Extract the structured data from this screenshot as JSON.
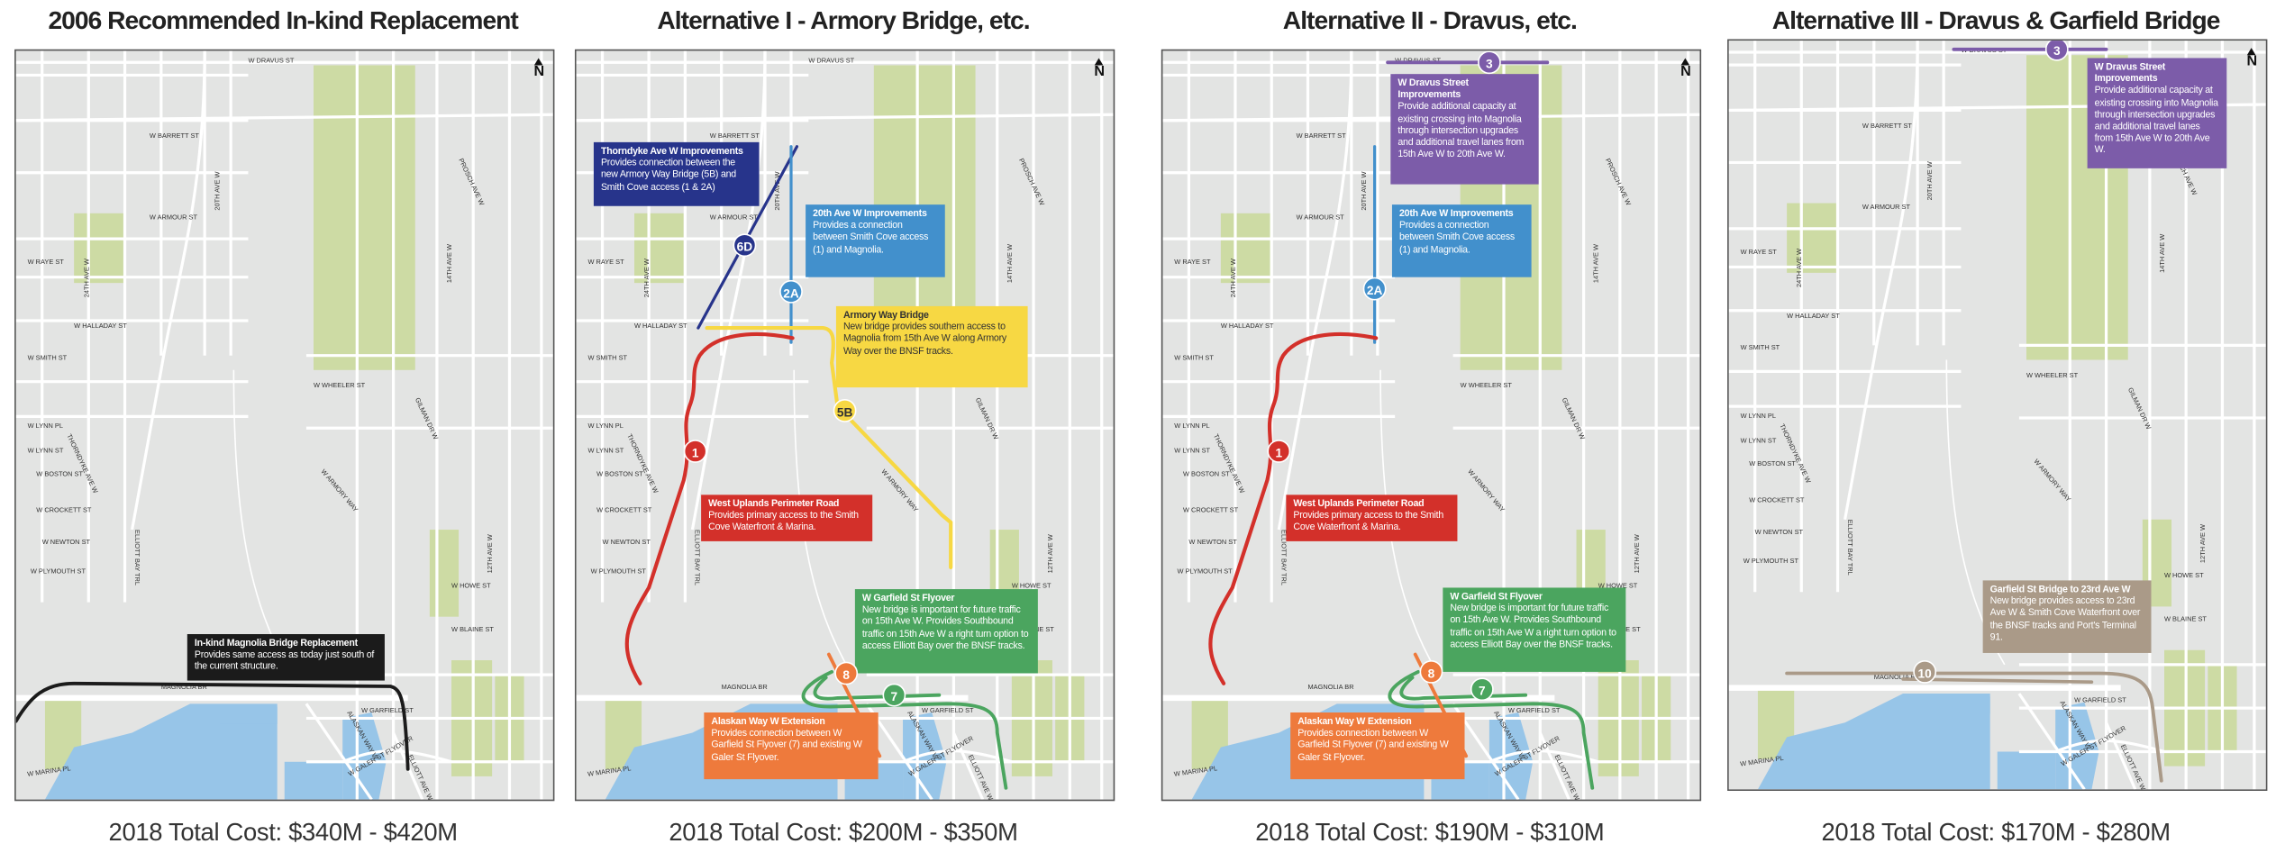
{
  "north_label": "N",
  "street_labels": [
    "W DRAVUS ST",
    "W BARRETT ST",
    "W ARMOUR ST",
    "W RAYE ST",
    "W HALLADAY ST",
    "W SMITH ST",
    "W LYNN PL",
    "W LYNN ST",
    "W BOSTON ST",
    "W CROCKETT ST",
    "W NEWTON ST",
    "W PLYMOUTH ST",
    "W WHEELER ST",
    "W HOWE ST",
    "W BLAINE ST",
    "MAGNOLIA BR",
    "W GARFIELD ST",
    "W MARINA PL",
    "ALASKAN WAY W",
    "W GALER ST FLYOVER",
    "ELLIOTT AVE W",
    "ELLIOTT BAY TRL",
    "20TH AVE W",
    "24TH AVE W",
    "14TH AVE W",
    "12TH AVE W",
    "GILMAN DR W",
    "THORNDYKE AVE W",
    "W ARMORY WAY",
    "PROSCH AVE W"
  ],
  "colors": {
    "navy": "#27348b",
    "lightblue": "#4290cc",
    "yellow": "#f7d843",
    "red": "#d3302a",
    "green": "#4ba55f",
    "orange": "#ee7a3c",
    "purple": "#7c5ca9",
    "brown": "#aa9a88",
    "black": "#1b1b1b",
    "park": "#cddba4",
    "water": "#97c5e8",
    "land": "#e3e4e3"
  },
  "panels": [
    {
      "title": "2006 Recommended In-kind Replacement",
      "cost": "2018 Total Cost: $340M - $420M",
      "callouts": [
        {
          "title": "In-kind Magnolia Bridge Replacement",
          "body": "Provides same access as today just south of the current structure.",
          "color": "#1b1b1b"
        }
      ],
      "badges": []
    },
    {
      "title": "Alternative I - Armory Bridge, etc.",
      "cost": "2018 Total Cost: $200M - $350M",
      "callouts": [
        {
          "title": "Thorndyke Ave W Improvements",
          "body": "Provides connection between the new Armory Way Bridge (5B) and Smith Cove access (1 & 2A)",
          "color": "#27348b"
        },
        {
          "title": "20th Ave W Improvements",
          "body": "Provides a connection between Smith Cove access (1) and Magnolia.",
          "color": "#4290cc"
        },
        {
          "title": "Armory Way Bridge",
          "body": "New bridge provides southern access to Magnolia from 15th Ave W along Armory Way over the BNSF tracks.",
          "color": "#f7d843"
        },
        {
          "title": "West Uplands Perimeter Road",
          "body": "Provides primary access to the Smith Cove Waterfront & Marina.",
          "color": "#d3302a"
        },
        {
          "title": "W Garfield St Flyover",
          "body": "New bridge is important for future traffic on 15th Ave W. Provides Southbound traffic on 15th Ave W a right turn option to access Elliott Bay over the BNSF tracks.",
          "color": "#4ba55f"
        },
        {
          "title": "Alaskan Way W Extension",
          "body": "Provides connection between W Garfield St Flyover (7) and existing W Galer St Flyover.",
          "color": "#ee7a3c"
        }
      ],
      "badges": [
        {
          "label": "6D",
          "color": "#27348b"
        },
        {
          "label": "2A",
          "color": "#4290cc"
        },
        {
          "label": "5B",
          "color": "#f7d843"
        },
        {
          "label": "1",
          "color": "#d3302a"
        },
        {
          "label": "8",
          "color": "#ee7a3c"
        },
        {
          "label": "7",
          "color": "#4ba55f"
        }
      ]
    },
    {
      "title": "Alternative II - Dravus, etc.",
      "cost": "2018 Total Cost: $190M - $310M",
      "callouts": [
        {
          "title": "W Dravus Street Improvements",
          "body": "Provide additional capacity at existing crossing into Magnolia through intersection upgrades and additional travel lanes from 15th Ave W to 20th Ave W.",
          "color": "#7c5ca9"
        },
        {
          "title": "20th Ave W Improvements",
          "body": "Provides a connection between Smith Cove access (1) and Magnolia.",
          "color": "#4290cc"
        },
        {
          "title": "West Uplands Perimeter Road",
          "body": "Provides primary access to the Smith Cove Waterfront & Marina.",
          "color": "#d3302a"
        },
        {
          "title": "W Garfield St Flyover",
          "body": "New bridge is important for future traffic on 15th Ave W. Provides Southbound traffic on 15th Ave W a right turn option to access Elliott Bay over the BNSF tracks.",
          "color": "#4ba55f"
        },
        {
          "title": "Alaskan Way W Extension",
          "body": "Provides connection between W Garfield St Flyover (7) and existing W Galer St Flyover.",
          "color": "#ee7a3c"
        }
      ],
      "badges": [
        {
          "label": "3",
          "color": "#7c5ca9"
        },
        {
          "label": "2A",
          "color": "#4290cc"
        },
        {
          "label": "1",
          "color": "#d3302a"
        },
        {
          "label": "8",
          "color": "#ee7a3c"
        },
        {
          "label": "7",
          "color": "#4ba55f"
        }
      ]
    },
    {
      "title": "Alternative III - Dravus & Garfield Bridge",
      "cost": "2018 Total Cost: $170M - $280M",
      "callouts": [
        {
          "title": "W Dravus Street Improvements",
          "body": "Provide additional capacity at existing crossing into Magnolia through intersection upgrades and additional travel lanes from 15th Ave W to 20th Ave W.",
          "color": "#7c5ca9"
        },
        {
          "title": "Garfield St Bridge to 23rd Ave W",
          "body": "New bridge provides access to 23rd Ave W & Smith Cove Waterfront over the BNSF tracks and Port's Terminal 91.",
          "color": "#aa9a88"
        }
      ],
      "badges": [
        {
          "label": "3",
          "color": "#7c5ca9"
        },
        {
          "label": "10",
          "color": "#aa9a88"
        }
      ]
    }
  ]
}
